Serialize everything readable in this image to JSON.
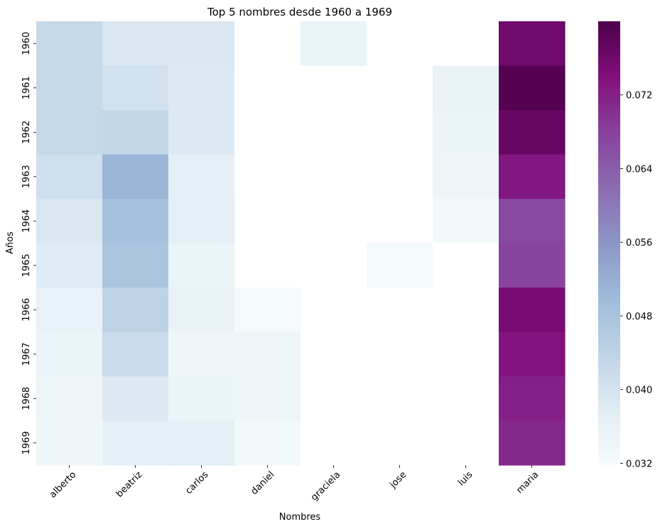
{
  "chart_data": {
    "type": "heatmap",
    "title": "Top 5 nombres desde 1960 a 1969",
    "xlabel": "Nombres",
    "ylabel": "Años",
    "x_categories": [
      "alberto",
      "beatriz",
      "carlos",
      "daniel",
      "graciela",
      "jose",
      "luis",
      "maria"
    ],
    "y_categories": [
      "1960",
      "1961",
      "1962",
      "1963",
      "1964",
      "1965",
      "1966",
      "1967",
      "1968",
      "1969"
    ],
    "values": [
      [
        0.0425,
        0.039,
        0.039,
        null,
        0.035,
        null,
        null,
        0.076
      ],
      [
        0.0425,
        0.0405,
        0.0385,
        null,
        null,
        null,
        0.0355,
        0.079
      ],
      [
        0.0425,
        0.043,
        0.0385,
        null,
        null,
        null,
        0.035,
        0.077
      ],
      [
        0.041,
        0.051,
        0.0365,
        null,
        null,
        null,
        0.0345,
        0.073
      ],
      [
        0.039,
        0.0485,
        0.037,
        null,
        null,
        null,
        0.033,
        0.067
      ],
      [
        0.038,
        0.0475,
        0.035,
        null,
        null,
        0.0325,
        null,
        0.0675
      ],
      [
        0.036,
        0.044,
        0.0355,
        0.0325,
        null,
        null,
        null,
        0.075
      ],
      [
        0.035,
        0.042,
        0.034,
        0.0345,
        null,
        null,
        null,
        0.0735
      ],
      [
        0.0345,
        0.0385,
        0.035,
        0.0345,
        null,
        null,
        null,
        0.072
      ],
      [
        0.034,
        0.0365,
        0.037,
        0.033,
        null,
        null,
        null,
        0.071
      ]
    ],
    "colormap": "BuPu",
    "vmin": 0.0318,
    "vmax": 0.08,
    "colorbar_ticks": [
      "0.032",
      "0.040",
      "0.048",
      "0.056",
      "0.064",
      "0.072"
    ],
    "missing_color": "#ffffff"
  }
}
